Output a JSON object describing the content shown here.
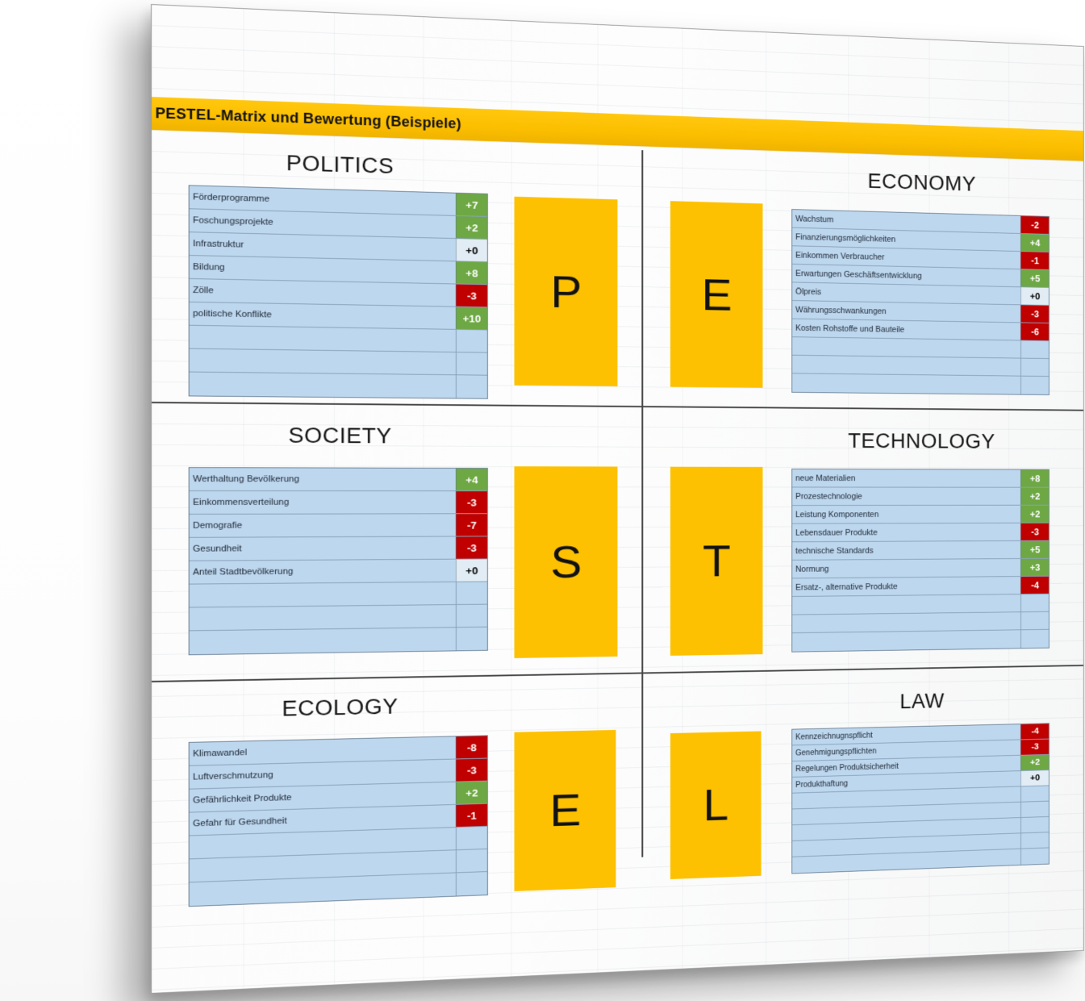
{
  "title": "PESTEL-Matrix und Bewertung (Beispiele)",
  "colors": {
    "accent_yellow": "#FFC000",
    "positive_green": "#6EA844",
    "negative_red": "#C00000",
    "table_blue": "#BDD7EE"
  },
  "sections": [
    {
      "id": "politics",
      "header": "POLITICS",
      "letter": "P",
      "items": [
        {
          "label": "Förderprogramme",
          "value": "+7",
          "tone": "pos"
        },
        {
          "label": "Foschungsprojekte",
          "value": "+2",
          "tone": "pos"
        },
        {
          "label": "Infrastruktur",
          "value": "+0",
          "tone": "neu"
        },
        {
          "label": "Bildung",
          "value": "+8",
          "tone": "pos"
        },
        {
          "label": "Zölle",
          "value": "-3",
          "tone": "neg"
        },
        {
          "label": "politische Konflikte",
          "value": "+10",
          "tone": "pos"
        }
      ]
    },
    {
      "id": "economy",
      "header": "ECONOMY",
      "letter": "E",
      "items": [
        {
          "label": "Wachstum",
          "value": "-2",
          "tone": "neg"
        },
        {
          "label": "Finanzierungsmöglichkeiten",
          "value": "+4",
          "tone": "pos"
        },
        {
          "label": "Einkommen Verbraucher",
          "value": "-1",
          "tone": "neg"
        },
        {
          "label": "Erwartungen Geschäftsentwicklung",
          "value": "+5",
          "tone": "pos"
        },
        {
          "label": "Ölpreis",
          "value": "+0",
          "tone": "neu"
        },
        {
          "label": "Währungsschwankungen",
          "value": "-3",
          "tone": "neg"
        },
        {
          "label": "Kosten Rohstoffe und Bauteile",
          "value": "-6",
          "tone": "neg"
        }
      ]
    },
    {
      "id": "society",
      "header": "SOCIETY",
      "letter": "S",
      "items": [
        {
          "label": "Werthaltung Bevölkerung",
          "value": "+4",
          "tone": "pos"
        },
        {
          "label": "Einkommensverteilung",
          "value": "-3",
          "tone": "neg"
        },
        {
          "label": "Demografie",
          "value": "-7",
          "tone": "neg"
        },
        {
          "label": "Gesundheit",
          "value": "-3",
          "tone": "neg"
        },
        {
          "label": "Anteil Stadtbevölkerung",
          "value": "+0",
          "tone": "neu"
        }
      ]
    },
    {
      "id": "technology",
      "header": "TECHNOLOGY",
      "letter": "T",
      "items": [
        {
          "label": "neue Materialien",
          "value": "+8",
          "tone": "pos"
        },
        {
          "label": "Prozestechnologie",
          "value": "+2",
          "tone": "pos"
        },
        {
          "label": "Leistung Komponenten",
          "value": "+2",
          "tone": "pos"
        },
        {
          "label": "Lebensdauer Produkte",
          "value": "-3",
          "tone": "neg"
        },
        {
          "label": "technische Standards",
          "value": "+5",
          "tone": "pos"
        },
        {
          "label": "Normung",
          "value": "+3",
          "tone": "pos"
        },
        {
          "label": "Ersatz-, alternative Produkte",
          "value": "-4",
          "tone": "neg"
        }
      ]
    },
    {
      "id": "ecology",
      "header": "ECOLOGY",
      "letter": "E",
      "items": [
        {
          "label": "Klimawandel",
          "value": "-8",
          "tone": "neg"
        },
        {
          "label": "Luftverschmutzung",
          "value": "-3",
          "tone": "neg"
        },
        {
          "label": "Gefährlichkeit Produkte",
          "value": "+2",
          "tone": "pos"
        },
        {
          "label": "Gefahr für Gesundheit",
          "value": "-1",
          "tone": "neg"
        }
      ]
    },
    {
      "id": "law",
      "header": "LAW",
      "letter": "L",
      "items": [
        {
          "label": "Kennzeichnugnspflicht",
          "value": "-4",
          "tone": "neg"
        },
        {
          "label": "Genehmigungspflichten",
          "value": "-3",
          "tone": "neg"
        },
        {
          "label": "Regelungen Produktsicherheit",
          "value": "+2",
          "tone": "pos"
        },
        {
          "label": "Produkthaftung",
          "value": "+0",
          "tone": "neu"
        }
      ]
    }
  ]
}
